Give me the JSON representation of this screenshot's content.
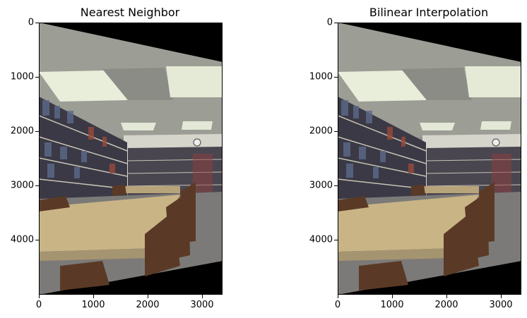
{
  "panels": [
    {
      "title": "Nearest Neighbor",
      "y_ticks": [
        "0",
        "1000",
        "2000",
        "3000",
        "4000"
      ],
      "x_ticks": [
        "0",
        "1000",
        "2000",
        "3000"
      ]
    },
    {
      "title": "Bilinear Interpolation",
      "y_ticks": [
        "0",
        "1000",
        "2000",
        "3000",
        "4000"
      ],
      "x_ticks": [
        "0",
        "1000",
        "2000",
        "3000"
      ]
    }
  ],
  "colors": {
    "ceiling": "#9a9b92",
    "light_panel": "#e9eedb",
    "wall": "#d9d8cf",
    "shelves": "#3b3a45",
    "carpet": "#7b7a78",
    "table_top": "#c9b486",
    "chairs": "#5a3a26",
    "background": "#000000"
  }
}
